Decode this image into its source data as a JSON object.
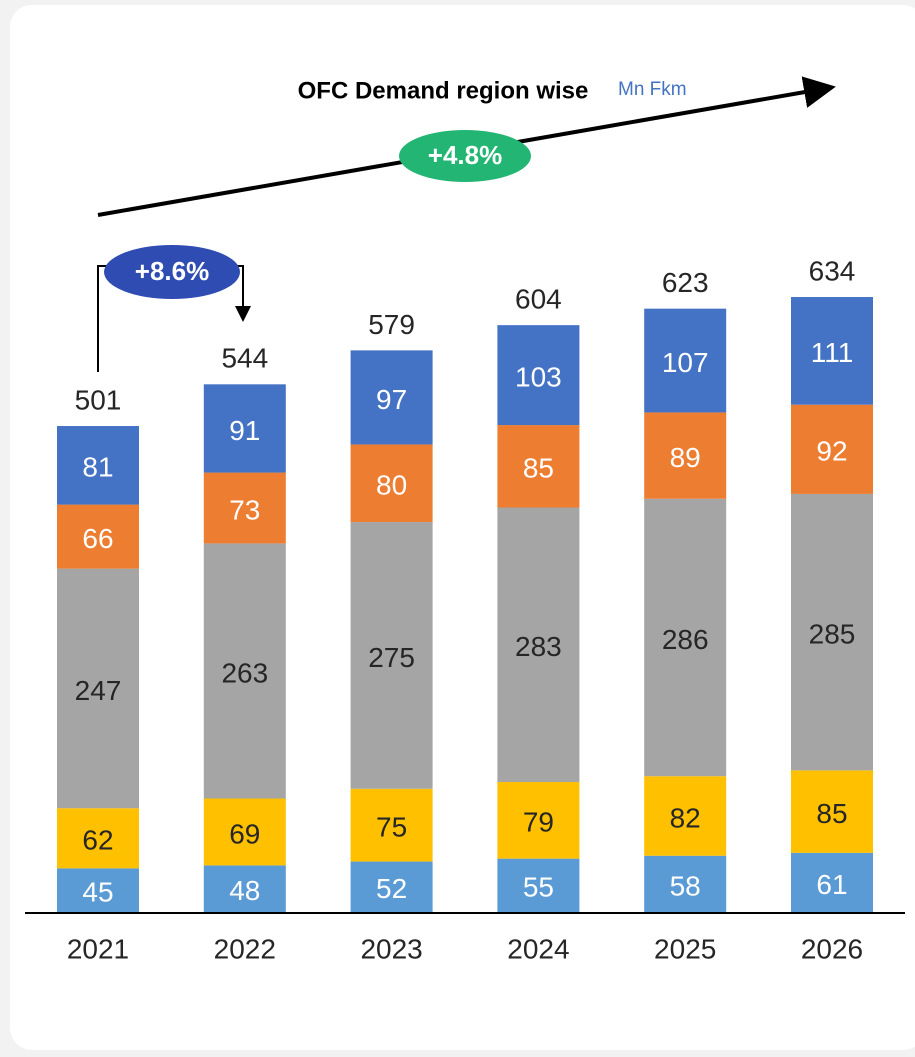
{
  "chart_data": {
    "type": "stacked_bar",
    "title": "OFC Demand region wise",
    "unit": "Mn Fkm",
    "annotations": [
      "+8.6%",
      "+4.8%"
    ],
    "categories": [
      "2021",
      "2022",
      "2023",
      "2024",
      "2025",
      "2026"
    ],
    "series": [
      {
        "color": "#5b9bd5",
        "label_color": "#ffffff",
        "values": [
          45,
          48,
          52,
          55,
          58,
          61
        ]
      },
      {
        "color": "#ffc000",
        "label_color": "#262626",
        "values": [
          62,
          69,
          75,
          79,
          82,
          85
        ]
      },
      {
        "color": "#a5a5a5",
        "label_color": "#262626",
        "values": [
          247,
          263,
          275,
          283,
          286,
          285
        ]
      },
      {
        "color": "#ed7d31",
        "label_color": "#ffffff",
        "values": [
          66,
          73,
          80,
          85,
          89,
          92
        ]
      },
      {
        "color": "#4472c4",
        "label_color": "#ffffff",
        "values": [
          81,
          91,
          97,
          103,
          107,
          111
        ]
      }
    ],
    "totals": [
      501,
      544,
      579,
      604,
      623,
      634
    ]
  }
}
